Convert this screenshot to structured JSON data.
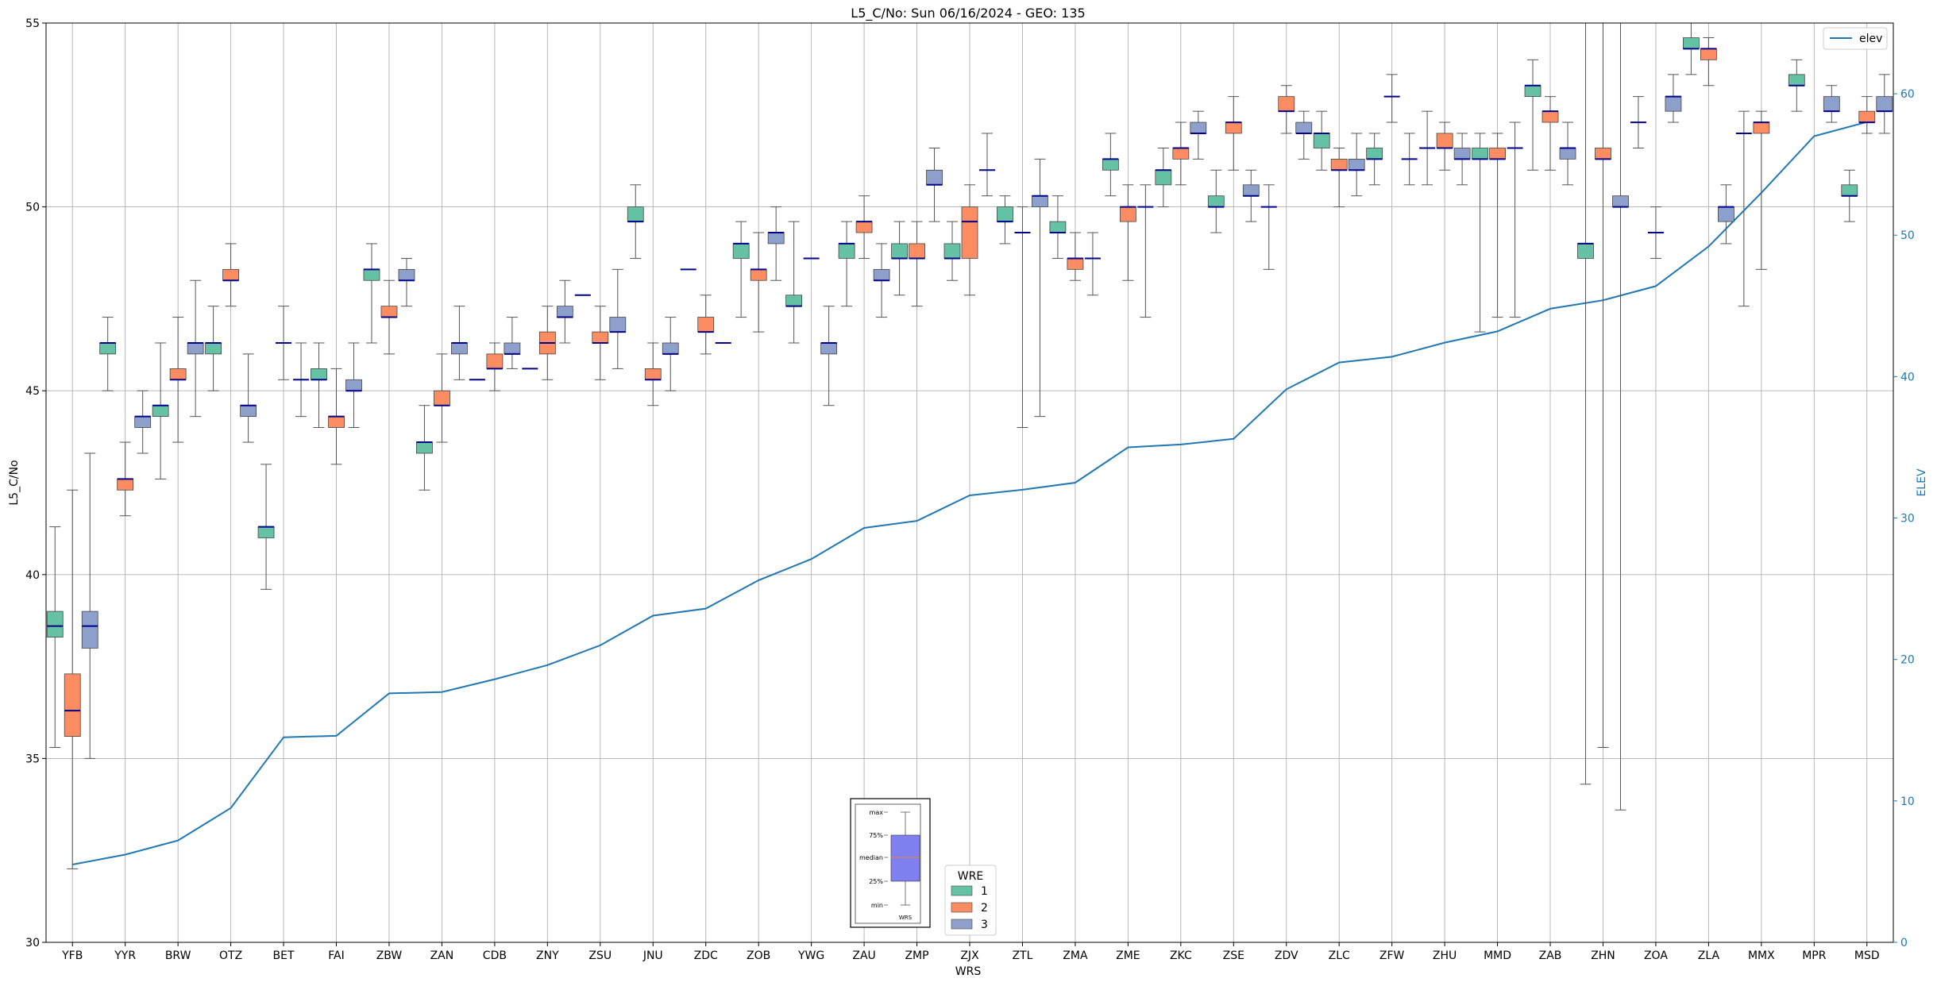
{
  "chart_data": {
    "type": "box",
    "title": "L5_C/No: Sun 06/16/2024 - GEO: 135",
    "xlabel": "WRS",
    "ylabel": "L5_C/No",
    "y2label": "ELEV",
    "ylim": [
      30,
      55
    ],
    "y2lim": [
      0,
      65
    ],
    "yticks": [
      30,
      35,
      40,
      45,
      50,
      55
    ],
    "y2ticks": [
      0,
      10,
      20,
      30,
      40,
      50,
      60
    ],
    "grid": true,
    "categories": [
      "YFB",
      "YYR",
      "BRW",
      "OTZ",
      "BET",
      "FAI",
      "ZBW",
      "ZAN",
      "CDB",
      "ZNY",
      "ZSU",
      "JNU",
      "ZDC",
      "ZOB",
      "YWG",
      "ZAU",
      "ZMP",
      "ZJX",
      "ZTL",
      "ZMA",
      "ZME",
      "ZKC",
      "ZSE",
      "ZDV",
      "ZLC",
      "ZFW",
      "ZHU",
      "MMD",
      "ZAB",
      "ZHN",
      "ZOA",
      "ZLA",
      "MMX",
      "MPR",
      "MSD"
    ],
    "wre_colors": {
      "1": "#66c2a5",
      "2": "#fc8d62",
      "3": "#8da0cb"
    },
    "median_color": "#00008b",
    "legend_wre": {
      "title": "WRE",
      "labels": [
        "1",
        "2",
        "3"
      ],
      "placement": "bottom-center"
    },
    "legend_elev": {
      "label": "elev",
      "placement": "top-right",
      "color": "#1f77b4"
    },
    "boxes": [
      {
        "site": "YFB",
        "wre": 1,
        "whislo": 35.3,
        "q1": 38.3,
        "med": 38.6,
        "q3": 39.0,
        "whishi": 41.3
      },
      {
        "site": "YFB",
        "wre": 2,
        "whislo": 32.0,
        "q1": 35.6,
        "med": 36.3,
        "q3": 37.3,
        "whishi": 42.3
      },
      {
        "site": "YFB",
        "wre": 3,
        "whislo": 35.0,
        "q1": 38.0,
        "med": 38.6,
        "q3": 39.0,
        "whishi": 43.3
      },
      {
        "site": "YYR",
        "wre": 1,
        "whislo": 45.0,
        "q1": 46.0,
        "med": 46.3,
        "q3": 46.3,
        "whishi": 47.0
      },
      {
        "site": "YYR",
        "wre": 2,
        "whislo": 41.6,
        "q1": 42.3,
        "med": 42.6,
        "q3": 42.6,
        "whishi": 43.6
      },
      {
        "site": "YYR",
        "wre": 3,
        "whislo": 43.3,
        "q1": 44.0,
        "med": 44.3,
        "q3": 44.3,
        "whishi": 45.0
      },
      {
        "site": "BRW",
        "wre": 1,
        "whislo": 42.6,
        "q1": 44.3,
        "med": 44.6,
        "q3": 44.6,
        "whishi": 46.3
      },
      {
        "site": "BRW",
        "wre": 2,
        "whislo": 43.6,
        "q1": 45.3,
        "med": 45.3,
        "q3": 45.6,
        "whishi": 47.0
      },
      {
        "site": "BRW",
        "wre": 3,
        "whislo": 44.3,
        "q1": 46.0,
        "med": 46.3,
        "q3": 46.3,
        "whishi": 48.0
      },
      {
        "site": "OTZ",
        "wre": 1,
        "whislo": 45.0,
        "q1": 46.0,
        "med": 46.3,
        "q3": 46.3,
        "whishi": 47.3
      },
      {
        "site": "OTZ",
        "wre": 2,
        "whislo": 47.3,
        "q1": 48.0,
        "med": 48.0,
        "q3": 48.3,
        "whishi": 49.0
      },
      {
        "site": "OTZ",
        "wre": 3,
        "whislo": 43.6,
        "q1": 44.3,
        "med": 44.6,
        "q3": 44.6,
        "whishi": 46.0
      },
      {
        "site": "BET",
        "wre": 1,
        "whislo": 39.6,
        "q1": 41.0,
        "med": 41.3,
        "q3": 41.3,
        "whishi": 43.0
      },
      {
        "site": "BET",
        "wre": 2,
        "whislo": 45.3,
        "q1": 46.3,
        "med": 46.3,
        "q3": 46.3,
        "whishi": 47.3
      },
      {
        "site": "BET",
        "wre": 3,
        "whislo": 44.3,
        "q1": 45.3,
        "med": 45.3,
        "q3": 45.3,
        "whishi": 46.3
      },
      {
        "site": "FAI",
        "wre": 1,
        "whislo": 44.0,
        "q1": 45.3,
        "med": 45.3,
        "q3": 45.6,
        "whishi": 46.3
      },
      {
        "site": "FAI",
        "wre": 2,
        "whislo": 43.0,
        "q1": 44.0,
        "med": 44.3,
        "q3": 44.3,
        "whishi": 45.6
      },
      {
        "site": "FAI",
        "wre": 3,
        "whislo": 44.0,
        "q1": 45.0,
        "med": 45.0,
        "q3": 45.3,
        "whishi": 46.3
      },
      {
        "site": "ZBW",
        "wre": 1,
        "whislo": 46.3,
        "q1": 48.0,
        "med": 48.3,
        "q3": 48.3,
        "whishi": 49.0
      },
      {
        "site": "ZBW",
        "wre": 2,
        "whislo": 46.0,
        "q1": 47.0,
        "med": 47.0,
        "q3": 47.3,
        "whishi": 48.0
      },
      {
        "site": "ZBW",
        "wre": 3,
        "whislo": 47.3,
        "q1": 48.0,
        "med": 48.0,
        "q3": 48.3,
        "whishi": 48.6
      },
      {
        "site": "ZAN",
        "wre": 1,
        "whislo": 42.3,
        "q1": 43.3,
        "med": 43.6,
        "q3": 43.6,
        "whishi": 44.6
      },
      {
        "site": "ZAN",
        "wre": 2,
        "whislo": 43.6,
        "q1": 44.6,
        "med": 44.6,
        "q3": 45.0,
        "whishi": 46.0
      },
      {
        "site": "ZAN",
        "wre": 3,
        "whislo": 45.3,
        "q1": 46.0,
        "med": 46.3,
        "q3": 46.3,
        "whishi": 47.3
      },
      {
        "site": "CDB",
        "wre": 1,
        "whislo": 45.3,
        "q1": 45.3,
        "med": 45.3,
        "q3": 45.3,
        "whishi": 45.3
      },
      {
        "site": "CDB",
        "wre": 2,
        "whislo": 45.0,
        "q1": 45.6,
        "med": 45.6,
        "q3": 46.0,
        "whishi": 46.3
      },
      {
        "site": "CDB",
        "wre": 3,
        "whislo": 45.6,
        "q1": 46.0,
        "med": 46.0,
        "q3": 46.3,
        "whishi": 47.0
      },
      {
        "site": "ZNY",
        "wre": 1,
        "whislo": 45.6,
        "q1": 45.6,
        "med": 45.6,
        "q3": 45.6,
        "whishi": 45.6
      },
      {
        "site": "ZNY",
        "wre": 2,
        "whislo": 45.3,
        "q1": 46.0,
        "med": 46.3,
        "q3": 46.6,
        "whishi": 47.3
      },
      {
        "site": "ZNY",
        "wre": 3,
        "whislo": 46.3,
        "q1": 47.0,
        "med": 47.0,
        "q3": 47.3,
        "whishi": 48.0
      },
      {
        "site": "ZSU",
        "wre": 1,
        "whislo": 47.6,
        "q1": 47.6,
        "med": 47.6,
        "q3": 47.6,
        "whishi": 47.6
      },
      {
        "site": "ZSU",
        "wre": 2,
        "whislo": 45.3,
        "q1": 46.3,
        "med": 46.3,
        "q3": 46.6,
        "whishi": 47.3
      },
      {
        "site": "ZSU",
        "wre": 3,
        "whislo": 45.6,
        "q1": 46.6,
        "med": 46.6,
        "q3": 47.0,
        "whishi": 48.3
      },
      {
        "site": "JNU",
        "wre": 1,
        "whislo": 48.6,
        "q1": 49.6,
        "med": 49.6,
        "q3": 50.0,
        "whishi": 50.6
      },
      {
        "site": "JNU",
        "wre": 2,
        "whislo": 44.6,
        "q1": 45.3,
        "med": 45.3,
        "q3": 45.6,
        "whishi": 46.3
      },
      {
        "site": "JNU",
        "wre": 3,
        "whislo": 45.0,
        "q1": 46.0,
        "med": 46.0,
        "q3": 46.3,
        "whishi": 47.0
      },
      {
        "site": "ZDC",
        "wre": 1,
        "whislo": 48.3,
        "q1": 48.3,
        "med": 48.3,
        "q3": 48.3,
        "whishi": 48.3
      },
      {
        "site": "ZDC",
        "wre": 2,
        "whislo": 46.0,
        "q1": 46.6,
        "med": 46.6,
        "q3": 47.0,
        "whishi": 47.6
      },
      {
        "site": "ZDC",
        "wre": 3,
        "whislo": 46.3,
        "q1": 46.3,
        "med": 46.3,
        "q3": 46.3,
        "whishi": 46.3
      },
      {
        "site": "ZOB",
        "wre": 1,
        "whislo": 47.0,
        "q1": 48.6,
        "med": 49.0,
        "q3": 49.0,
        "whishi": 49.6
      },
      {
        "site": "ZOB",
        "wre": 2,
        "whislo": 46.6,
        "q1": 48.0,
        "med": 48.3,
        "q3": 48.3,
        "whishi": 49.3
      },
      {
        "site": "ZOB",
        "wre": 3,
        "whislo": 48.0,
        "q1": 49.0,
        "med": 49.3,
        "q3": 49.3,
        "whishi": 50.0
      },
      {
        "site": "YWG",
        "wre": 1,
        "whislo": 46.3,
        "q1": 47.3,
        "med": 47.3,
        "q3": 47.6,
        "whishi": 49.6
      },
      {
        "site": "YWG",
        "wre": 2,
        "whislo": 48.6,
        "q1": 48.6,
        "med": 48.6,
        "q3": 48.6,
        "whishi": 48.6
      },
      {
        "site": "YWG",
        "wre": 3,
        "whislo": 44.6,
        "q1": 46.0,
        "med": 46.3,
        "q3": 46.3,
        "whishi": 47.3
      },
      {
        "site": "ZAU",
        "wre": 1,
        "whislo": 47.3,
        "q1": 48.6,
        "med": 49.0,
        "q3": 49.0,
        "whishi": 49.6
      },
      {
        "site": "ZAU",
        "wre": 2,
        "whislo": 48.6,
        "q1": 49.3,
        "med": 49.6,
        "q3": 49.6,
        "whishi": 50.3
      },
      {
        "site": "ZAU",
        "wre": 3,
        "whislo": 47.0,
        "q1": 48.0,
        "med": 48.0,
        "q3": 48.3,
        "whishi": 49.0
      },
      {
        "site": "ZMP",
        "wre": 1,
        "whislo": 47.6,
        "q1": 48.6,
        "med": 48.6,
        "q3": 49.0,
        "whishi": 49.6
      },
      {
        "site": "ZMP",
        "wre": 2,
        "whislo": 47.3,
        "q1": 48.6,
        "med": 48.6,
        "q3": 49.0,
        "whishi": 49.6
      },
      {
        "site": "ZMP",
        "wre": 3,
        "whislo": 49.6,
        "q1": 50.6,
        "med": 50.6,
        "q3": 51.0,
        "whishi": 51.6
      },
      {
        "site": "ZJX",
        "wre": 1,
        "whislo": 48.0,
        "q1": 48.6,
        "med": 48.6,
        "q3": 49.0,
        "whishi": 49.6
      },
      {
        "site": "ZJX",
        "wre": 2,
        "whislo": 47.6,
        "q1": 48.6,
        "med": 49.6,
        "q3": 50.0,
        "whishi": 50.6
      },
      {
        "site": "ZJX",
        "wre": 3,
        "whislo": 50.3,
        "q1": 51.0,
        "med": 51.0,
        "q3": 51.0,
        "whishi": 52.0
      },
      {
        "site": "ZTL",
        "wre": 1,
        "whislo": 49.0,
        "q1": 49.6,
        "med": 49.6,
        "q3": 50.0,
        "whishi": 50.3
      },
      {
        "site": "ZTL",
        "wre": 2,
        "whislo": 44.0,
        "q1": 49.3,
        "med": 49.3,
        "q3": 49.3,
        "whishi": 50.0
      },
      {
        "site": "ZTL",
        "wre": 3,
        "whislo": 44.3,
        "q1": 50.0,
        "med": 50.3,
        "q3": 50.3,
        "whishi": 51.3
      },
      {
        "site": "ZMA",
        "wre": 1,
        "whislo": 48.6,
        "q1": 49.3,
        "med": 49.3,
        "q3": 49.6,
        "whishi": 50.3
      },
      {
        "site": "ZMA",
        "wre": 2,
        "whislo": 48.0,
        "q1": 48.3,
        "med": 48.6,
        "q3": 48.6,
        "whishi": 49.3
      },
      {
        "site": "ZMA",
        "wre": 3,
        "whislo": 47.6,
        "q1": 48.6,
        "med": 48.6,
        "q3": 48.6,
        "whishi": 49.3
      },
      {
        "site": "ZME",
        "wre": 1,
        "whislo": 50.3,
        "q1": 51.0,
        "med": 51.3,
        "q3": 51.3,
        "whishi": 52.0
      },
      {
        "site": "ZME",
        "wre": 2,
        "whislo": 48.0,
        "q1": 49.6,
        "med": 50.0,
        "q3": 50.0,
        "whishi": 50.6
      },
      {
        "site": "ZME",
        "wre": 3,
        "whislo": 47.0,
        "q1": 50.0,
        "med": 50.0,
        "q3": 50.0,
        "whishi": 50.6
      },
      {
        "site": "ZKC",
        "wre": 1,
        "whislo": 50.0,
        "q1": 50.6,
        "med": 51.0,
        "q3": 51.0,
        "whishi": 51.6
      },
      {
        "site": "ZKC",
        "wre": 2,
        "whislo": 50.6,
        "q1": 51.3,
        "med": 51.6,
        "q3": 51.6,
        "whishi": 52.3
      },
      {
        "site": "ZKC",
        "wre": 3,
        "whislo": 51.3,
        "q1": 52.0,
        "med": 52.0,
        "q3": 52.3,
        "whishi": 52.6
      },
      {
        "site": "ZSE",
        "wre": 1,
        "whislo": 49.3,
        "q1": 50.0,
        "med": 50.0,
        "q3": 50.3,
        "whishi": 51.0
      },
      {
        "site": "ZSE",
        "wre": 2,
        "whislo": 51.0,
        "q1": 52.0,
        "med": 52.3,
        "q3": 52.3,
        "whishi": 53.0
      },
      {
        "site": "ZSE",
        "wre": 3,
        "whislo": 49.6,
        "q1": 50.3,
        "med": 50.3,
        "q3": 50.6,
        "whishi": 51.0
      },
      {
        "site": "ZDV",
        "wre": 1,
        "whislo": 48.3,
        "q1": 50.0,
        "med": 50.0,
        "q3": 50.0,
        "whishi": 50.6
      },
      {
        "site": "ZDV",
        "wre": 2,
        "whislo": 52.0,
        "q1": 52.6,
        "med": 52.6,
        "q3": 53.0,
        "whishi": 53.3
      },
      {
        "site": "ZDV",
        "wre": 3,
        "whislo": 51.3,
        "q1": 52.0,
        "med": 52.0,
        "q3": 52.3,
        "whishi": 52.6
      },
      {
        "site": "ZLC",
        "wre": 1,
        "whislo": 51.0,
        "q1": 51.6,
        "med": 52.0,
        "q3": 52.0,
        "whishi": 52.6
      },
      {
        "site": "ZLC",
        "wre": 2,
        "whislo": 50.0,
        "q1": 51.0,
        "med": 51.0,
        "q3": 51.3,
        "whishi": 51.6
      },
      {
        "site": "ZLC",
        "wre": 3,
        "whislo": 50.3,
        "q1": 51.0,
        "med": 51.0,
        "q3": 51.3,
        "whishi": 52.0
      },
      {
        "site": "ZFW",
        "wre": 1,
        "whislo": 50.6,
        "q1": 51.3,
        "med": 51.3,
        "q3": 51.6,
        "whishi": 52.0
      },
      {
        "site": "ZFW",
        "wre": 2,
        "whislo": 52.3,
        "q1": 53.0,
        "med": 53.0,
        "q3": 53.0,
        "whishi": 53.6
      },
      {
        "site": "ZFW",
        "wre": 3,
        "whislo": 50.6,
        "q1": 51.3,
        "med": 51.3,
        "q3": 51.3,
        "whishi": 52.0
      },
      {
        "site": "ZHU",
        "wre": 1,
        "whislo": 50.6,
        "q1": 51.6,
        "med": 51.6,
        "q3": 51.6,
        "whishi": 52.6
      },
      {
        "site": "ZHU",
        "wre": 2,
        "whislo": 51.0,
        "q1": 51.6,
        "med": 51.6,
        "q3": 52.0,
        "whishi": 52.3
      },
      {
        "site": "ZHU",
        "wre": 3,
        "whislo": 50.6,
        "q1": 51.3,
        "med": 51.3,
        "q3": 51.6,
        "whishi": 52.0
      },
      {
        "site": "MMD",
        "wre": 1,
        "whislo": 46.6,
        "q1": 51.3,
        "med": 51.3,
        "q3": 51.6,
        "whishi": 52.0
      },
      {
        "site": "MMD",
        "wre": 2,
        "whislo": 47.0,
        "q1": 51.3,
        "med": 51.3,
        "q3": 51.6,
        "whishi": 52.0
      },
      {
        "site": "MMD",
        "wre": 3,
        "whislo": 47.0,
        "q1": 51.6,
        "med": 51.6,
        "q3": 51.6,
        "whishi": 52.3
      },
      {
        "site": "ZAB",
        "wre": 1,
        "whislo": 51.0,
        "q1": 53.0,
        "med": 53.3,
        "q3": 53.3,
        "whishi": 54.0
      },
      {
        "site": "ZAB",
        "wre": 2,
        "whislo": 51.0,
        "q1": 52.3,
        "med": 52.6,
        "q3": 52.6,
        "whishi": 53.0
      },
      {
        "site": "ZAB",
        "wre": 3,
        "whislo": 50.6,
        "q1": 51.3,
        "med": 51.6,
        "q3": 51.6,
        "whishi": 52.3
      },
      {
        "site": "ZHN",
        "wre": 1,
        "whislo": 34.3,
        "q1": 48.6,
        "med": 49.0,
        "q3": 49.0,
        "whishi": 55.0
      },
      {
        "site": "ZHN",
        "wre": 2,
        "whislo": 35.3,
        "q1": 51.3,
        "med": 51.3,
        "q3": 51.6,
        "whishi": 55.0
      },
      {
        "site": "ZHN",
        "wre": 3,
        "whislo": 33.6,
        "q1": 50.0,
        "med": 50.0,
        "q3": 50.3,
        "whishi": 55.0
      },
      {
        "site": "ZOA",
        "wre": 1,
        "whislo": 51.6,
        "q1": 52.3,
        "med": 52.3,
        "q3": 52.3,
        "whishi": 53.0
      },
      {
        "site": "ZOA",
        "wre": 2,
        "whislo": 48.6,
        "q1": 49.3,
        "med": 49.3,
        "q3": 49.3,
        "whishi": 50.0
      },
      {
        "site": "ZOA",
        "wre": 3,
        "whislo": 52.3,
        "q1": 52.6,
        "med": 53.0,
        "q3": 53.0,
        "whishi": 53.6
      },
      {
        "site": "ZLA",
        "wre": 1,
        "whislo": 53.6,
        "q1": 54.3,
        "med": 54.3,
        "q3": 54.6,
        "whishi": 55.0
      },
      {
        "site": "ZLA",
        "wre": 2,
        "whislo": 53.3,
        "q1": 54.0,
        "med": 54.3,
        "q3": 54.3,
        "whishi": 54.6
      },
      {
        "site": "ZLA",
        "wre": 3,
        "whislo": 49.0,
        "q1": 49.6,
        "med": 50.0,
        "q3": 50.0,
        "whishi": 50.6
      },
      {
        "site": "MMX",
        "wre": 1,
        "whislo": 47.3,
        "q1": 52.0,
        "med": 52.0,
        "q3": 52.0,
        "whishi": 52.6
      },
      {
        "site": "MMX",
        "wre": 2,
        "whislo": 48.3,
        "q1": 52.0,
        "med": 52.3,
        "q3": 52.3,
        "whishi": 52.6
      },
      {
        "site": "MPR",
        "wre": 1,
        "whislo": 52.6,
        "q1": 53.3,
        "med": 53.3,
        "q3": 53.6,
        "whishi": 54.0
      },
      {
        "site": "MPR",
        "wre": 3,
        "whislo": 52.3,
        "q1": 52.6,
        "med": 52.6,
        "q3": 53.0,
        "whishi": 53.3
      },
      {
        "site": "MSD",
        "wre": 1,
        "whislo": 49.6,
        "q1": 50.3,
        "med": 50.3,
        "q3": 50.6,
        "whishi": 51.0
      },
      {
        "site": "MSD",
        "wre": 2,
        "whislo": 52.0,
        "q1": 52.3,
        "med": 52.3,
        "q3": 52.6,
        "whishi": 53.0
      },
      {
        "site": "MSD",
        "wre": 3,
        "whislo": 52.0,
        "q1": 52.6,
        "med": 52.6,
        "q3": 53.0,
        "whishi": 53.6
      }
    ],
    "elev": {
      "name": "elev",
      "values": [
        5.5,
        6.2,
        7.2,
        9.5,
        14.5,
        14.6,
        17.6,
        17.7,
        18.6,
        19.6,
        21.0,
        23.1,
        23.6,
        25.6,
        27.1,
        29.3,
        29.8,
        31.6,
        32.0,
        32.5,
        35.0,
        35.2,
        35.6,
        39.1,
        41.0,
        41.4,
        42.4,
        43.2,
        44.8,
        45.4,
        46.4,
        49.2,
        53.0,
        57.0,
        58.0
      ]
    },
    "legend_inset": {
      "labels": [
        "max",
        "75%",
        "median",
        "25%",
        "min"
      ],
      "xlabel": "WRS"
    }
  }
}
